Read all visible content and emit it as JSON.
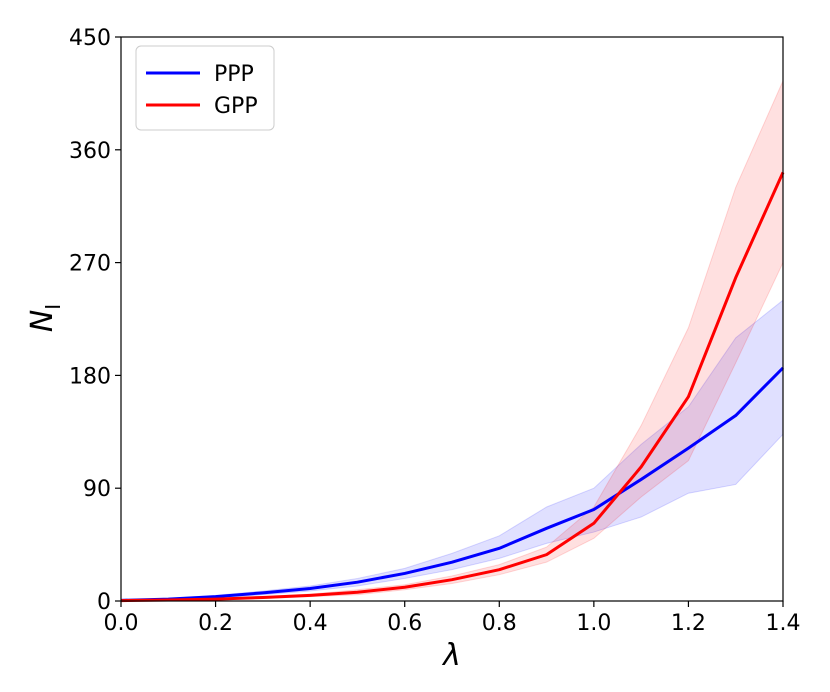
{
  "chart_data": {
    "type": "line",
    "xlabel": "λ",
    "ylabel_main": "N",
    "ylabel_sub": "I",
    "xlim": [
      0.0,
      1.4
    ],
    "ylim": [
      0,
      450
    ],
    "xticks": [
      "0.0",
      "0.2",
      "0.4",
      "0.6",
      "0.8",
      "1.0",
      "1.2",
      "1.4"
    ],
    "yticks": [
      "0",
      "90",
      "180",
      "270",
      "360",
      "450"
    ],
    "grid": false,
    "legend_position": "top-left",
    "x": [
      0.0,
      0.1,
      0.2,
      0.3,
      0.4,
      0.5,
      0.6,
      0.7,
      0.8,
      0.9,
      1.0,
      1.1,
      1.2,
      1.3,
      1.4
    ],
    "series": [
      {
        "name": "PPP",
        "color": "#0000ff",
        "values": [
          0.5,
          1.5,
          3.5,
          6.5,
          10,
          15,
          22,
          31,
          42,
          58,
          73,
          97,
          122,
          148,
          186
        ],
        "lower": [
          0.2,
          1.0,
          2.5,
          5.0,
          8.0,
          12,
          18,
          25,
          34,
          46,
          55,
          67,
          86,
          93,
          133
        ],
        "upper": [
          0.8,
          2.0,
          4.5,
          8.0,
          12,
          18,
          26,
          38,
          52,
          75,
          90,
          125,
          155,
          210,
          240
        ]
      },
      {
        "name": "GPP",
        "color": "#ff0000",
        "values": [
          0.3,
          0.8,
          1.5,
          2.8,
          4.5,
          7,
          11,
          17,
          25,
          37,
          62,
          107,
          163,
          258,
          342
        ],
        "lower": [
          0.1,
          0.5,
          1.0,
          2.0,
          3.5,
          5,
          9,
          14,
          21,
          31,
          50,
          83,
          112,
          190,
          270
        ],
        "upper": [
          0.5,
          1.2,
          2.0,
          3.6,
          5.5,
          9,
          13,
          20,
          29,
          43,
          75,
          140,
          218,
          330,
          415
        ]
      }
    ]
  }
}
